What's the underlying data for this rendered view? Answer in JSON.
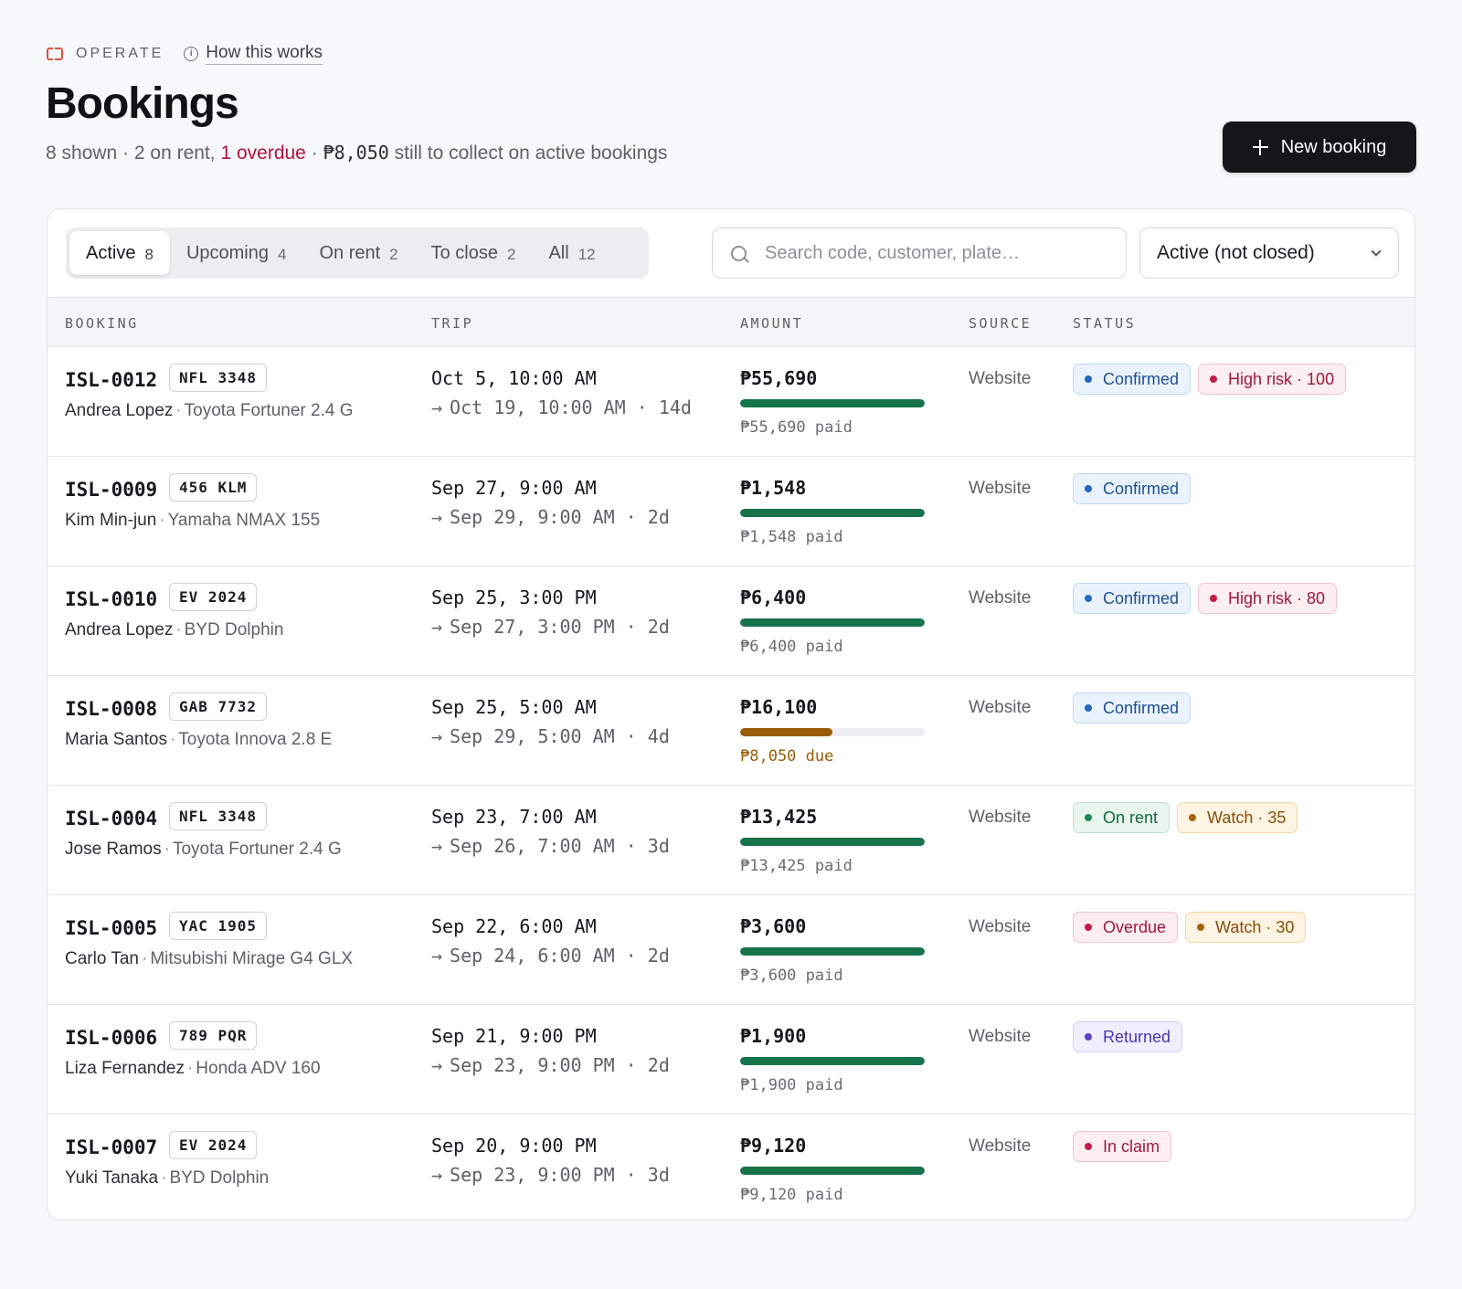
{
  "header": {
    "eyebrow": "OPERATE",
    "how_link": "How this works",
    "title": "Bookings",
    "summary_prefix": "8 shown · 2 on rent, ",
    "summary_overdue": "1 overdue",
    "summary_mid": " · ",
    "summary_amount": "₱8,050",
    "summary_suffix": " still to collect on active bookings",
    "new_button": "New booking"
  },
  "tabs": [
    {
      "label": "Active",
      "count": "8"
    },
    {
      "label": "Upcoming",
      "count": "4"
    },
    {
      "label": "On rent",
      "count": "2"
    },
    {
      "label": "To close",
      "count": "2"
    },
    {
      "label": "All",
      "count": "12"
    }
  ],
  "search": {
    "placeholder": "Search code, customer, plate…",
    "value": ""
  },
  "filter": {
    "selected": "Active (not closed)"
  },
  "columns": {
    "booking": "BOOKING",
    "trip": "TRIP",
    "amount": "AMOUNT",
    "source": "SOURCE",
    "status": "STATUS"
  },
  "rows": [
    {
      "code": "ISL-0012",
      "plate": "NFL 3348",
      "customer": "Andrea Lopez",
      "vehicle": "Toyota Fortuner 2.4 G",
      "start": "Oct 5, 10:00 AM",
      "end": "Oct 19, 10:00 AM · 14d",
      "amount": "₱55,690",
      "paid_fraction": 1.0,
      "paid_text": "₱55,690 paid",
      "source": "Website",
      "badges": [
        {
          "label": "Confirmed",
          "tone": "blue"
        },
        {
          "label": "High risk · 100",
          "tone": "red"
        }
      ]
    },
    {
      "code": "ISL-0009",
      "plate": "456 KLM",
      "customer": "Kim Min-jun",
      "vehicle": "Yamaha NMAX 155",
      "start": "Sep 27, 9:00 AM",
      "end": "Sep 29, 9:00 AM · 2d",
      "amount": "₱1,548",
      "paid_fraction": 1.0,
      "paid_text": "₱1,548 paid",
      "source": "Website",
      "badges": [
        {
          "label": "Confirmed",
          "tone": "blue"
        }
      ]
    },
    {
      "code": "ISL-0010",
      "plate": "EV 2024",
      "customer": "Andrea Lopez",
      "vehicle": "BYD Dolphin",
      "start": "Sep 25, 3:00 PM",
      "end": "Sep 27, 3:00 PM · 2d",
      "amount": "₱6,400",
      "paid_fraction": 1.0,
      "paid_text": "₱6,400 paid",
      "source": "Website",
      "badges": [
        {
          "label": "Confirmed",
          "tone": "blue"
        },
        {
          "label": "High risk · 80",
          "tone": "red"
        }
      ]
    },
    {
      "code": "ISL-0008",
      "plate": "GAB 7732",
      "customer": "Maria Santos",
      "vehicle": "Toyota Innova 2.8 E",
      "start": "Sep 25, 5:00 AM",
      "end": "Sep 29, 5:00 AM · 4d",
      "amount": "₱16,100",
      "paid_fraction": 0.5,
      "paid_text": "₱8,050 due",
      "due": true,
      "source": "Website",
      "badges": [
        {
          "label": "Confirmed",
          "tone": "blue"
        }
      ]
    },
    {
      "code": "ISL-0004",
      "plate": "NFL 3348",
      "customer": "Jose Ramos",
      "vehicle": "Toyota Fortuner 2.4 G",
      "start": "Sep 23, 7:00 AM",
      "end": "Sep 26, 7:00 AM · 3d",
      "amount": "₱13,425",
      "paid_fraction": 1.0,
      "paid_text": "₱13,425 paid",
      "source": "Website",
      "badges": [
        {
          "label": "On rent",
          "tone": "green"
        },
        {
          "label": "Watch · 35",
          "tone": "amber"
        }
      ]
    },
    {
      "code": "ISL-0005",
      "plate": "YAC 1905",
      "customer": "Carlo Tan",
      "vehicle": "Mitsubishi Mirage G4 GLX",
      "start": "Sep 22, 6:00 AM",
      "end": "Sep 24, 6:00 AM · 2d",
      "amount": "₱3,600",
      "paid_fraction": 1.0,
      "paid_text": "₱3,600 paid",
      "source": "Website",
      "badges": [
        {
          "label": "Overdue",
          "tone": "red"
        },
        {
          "label": "Watch · 30",
          "tone": "amber"
        }
      ]
    },
    {
      "code": "ISL-0006",
      "plate": "789 PQR",
      "customer": "Liza Fernandez",
      "vehicle": "Honda ADV 160",
      "start": "Sep 21, 9:00 PM",
      "end": "Sep 23, 9:00 PM · 2d",
      "amount": "₱1,900",
      "paid_fraction": 1.0,
      "paid_text": "₱1,900 paid",
      "source": "Website",
      "badges": [
        {
          "label": "Returned",
          "tone": "purple"
        }
      ]
    },
    {
      "code": "ISL-0007",
      "plate": "EV 2024",
      "customer": "Yuki Tanaka",
      "vehicle": "BYD Dolphin",
      "start": "Sep 20, 9:00 PM",
      "end": "Sep 23, 9:00 PM · 3d",
      "amount": "₱9,120",
      "paid_fraction": 1.0,
      "paid_text": "₱9,120 paid",
      "source": "Website",
      "badges": [
        {
          "label": "In claim",
          "tone": "red"
        }
      ]
    }
  ],
  "colors": {
    "accent": "#14161b",
    "overdue": "#b3123f",
    "paid": "#17734a",
    "due": "#9a5c06"
  }
}
